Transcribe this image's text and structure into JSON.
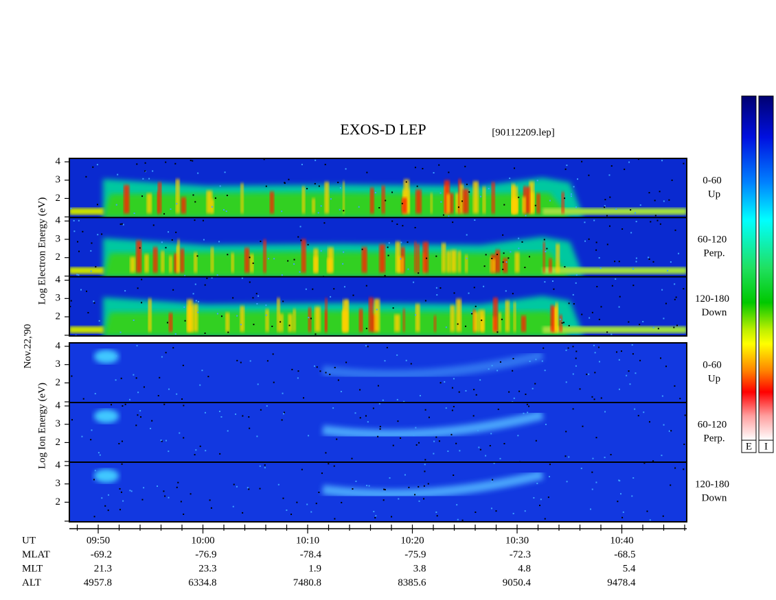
{
  "title": "EXOS-D LEP",
  "file": "[90112209.lep]",
  "date": "Nov.22,'90",
  "electron": {
    "axis_label": "Log Electron Energy (eV)",
    "panels": [
      {
        "pitch": "0-60",
        "direction": "Up",
        "yticks": [
          "4",
          "3",
          "2"
        ]
      },
      {
        "pitch": "60-120",
        "direction": "Perp.",
        "yticks": [
          "4",
          "3",
          "2"
        ]
      },
      {
        "pitch": "120-180",
        "direction": "Down",
        "yticks": [
          "4",
          "3",
          "2"
        ]
      }
    ]
  },
  "ion": {
    "axis_label": "Log Ion Energy (eV)",
    "panels": [
      {
        "pitch": "0-60",
        "direction": "Up",
        "yticks": [
          "4",
          "3",
          "2"
        ]
      },
      {
        "pitch": "60-120",
        "direction": "Perp.",
        "yticks": [
          "4",
          "3",
          "2"
        ]
      },
      {
        "pitch": "120-180",
        "direction": "Down",
        "yticks": [
          "4",
          "3",
          "2"
        ]
      }
    ]
  },
  "orbit_table": {
    "rows": [
      {
        "label": "UT",
        "values": [
          "09:50",
          "10:00",
          "10:10",
          "10:20",
          "10:30",
          "10:40"
        ]
      },
      {
        "label": "MLAT",
        "values": [
          "-69.2",
          "-76.9",
          "-78.4",
          "-75.9",
          "-72.3",
          "-68.5"
        ]
      },
      {
        "label": "MLT",
        "values": [
          "21.3",
          "23.3",
          "1.9",
          "3.8",
          "4.8",
          "5.4"
        ]
      },
      {
        "label": "ALT",
        "values": [
          "4957.8",
          "6334.8",
          "7480.8",
          "8385.6",
          "9050.4",
          "9478.4"
        ]
      }
    ]
  },
  "colorbars": [
    "E",
    "I"
  ]
}
